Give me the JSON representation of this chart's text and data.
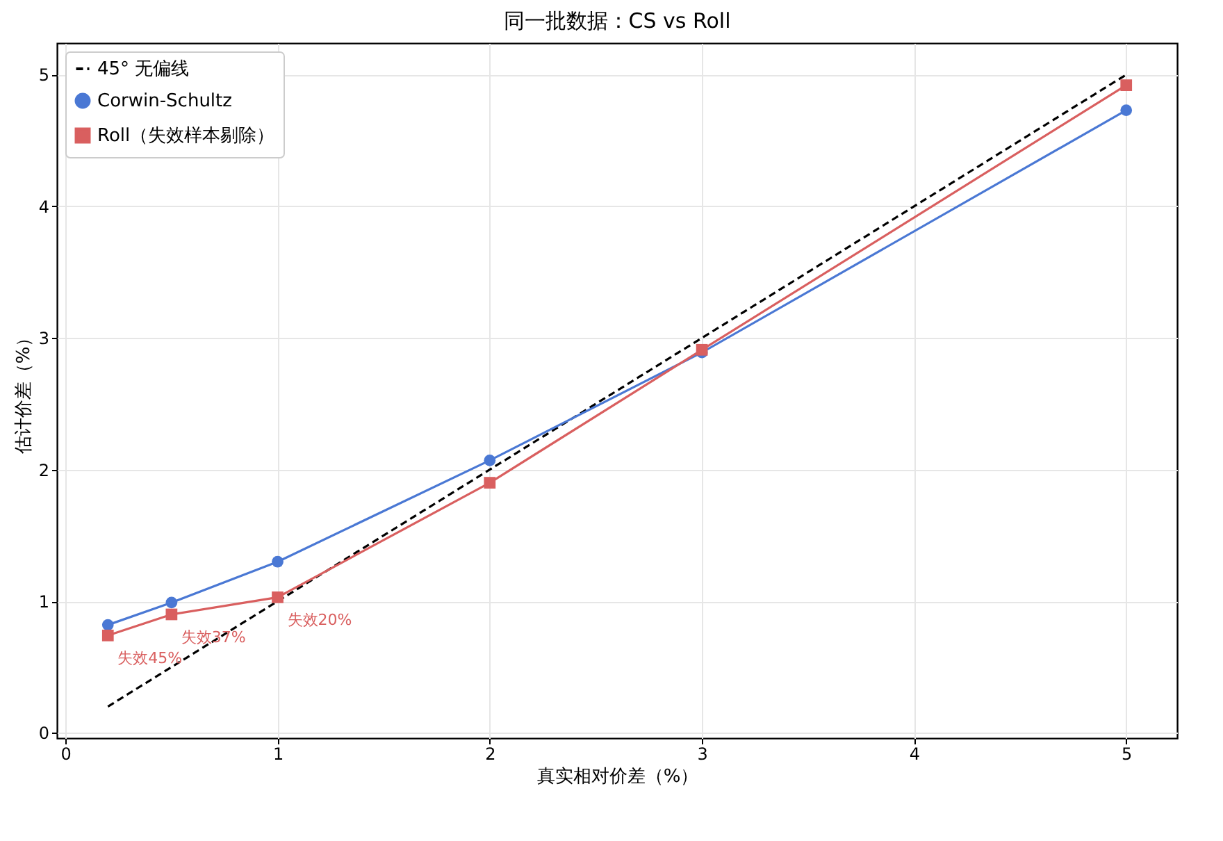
{
  "chart_data": {
    "type": "line",
    "title": "同一批数据：CS vs Roll",
    "xlabel": "真实相对价差（%）",
    "ylabel": "估计价差（%）",
    "xlim": [
      -0.04,
      5.24
    ],
    "ylim": [
      -0.04,
      5.24
    ],
    "xticks": [
      0,
      1,
      2,
      3,
      4,
      5
    ],
    "yticks": [
      0,
      1,
      2,
      3,
      4,
      5
    ],
    "grid": true,
    "legend": "top left",
    "series": [
      {
        "name": "45°  无偏线",
        "color": "#000000",
        "x": [
          0.2,
          5
        ],
        "values": [
          0.2,
          5
        ],
        "marker": "none",
        "line_style": "dashed"
      },
      {
        "name": "Corwin-Schultz",
        "color": "#4a78d4",
        "x": [
          0.2,
          0.5,
          1,
          2,
          3,
          5
        ],
        "values": [
          0.82,
          0.99,
          1.3,
          2.07,
          2.89,
          4.73
        ],
        "marker": "circle",
        "line_style": "solid"
      },
      {
        "name": "Roll（失效样本剔除）",
        "color": "#d95f5f",
        "x": [
          0.2,
          0.5,
          1,
          2,
          3,
          5
        ],
        "values": [
          0.74,
          0.9,
          1.03,
          1.9,
          2.91,
          4.92
        ],
        "marker": "square",
        "line_style": "solid"
      }
    ],
    "annotations": [
      {
        "text": "失效45%",
        "x": 0.2,
        "y": 0.74
      },
      {
        "text": "失效37%",
        "x": 0.5,
        "y": 0.9
      },
      {
        "text": "失效20%",
        "x": 1,
        "y": 1.03
      }
    ]
  }
}
